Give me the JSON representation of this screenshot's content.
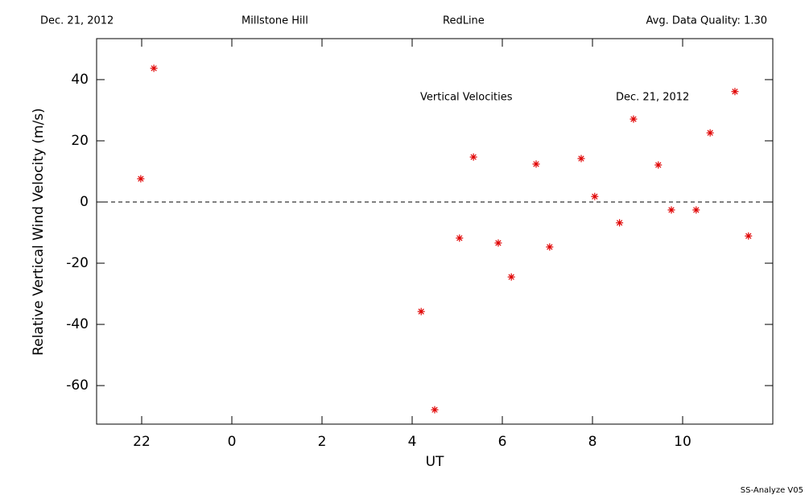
{
  "chart_data": {
    "type": "scatter",
    "header": [
      "Dec. 21, 2012",
      "Millstone Hill",
      "RedLine",
      "Avg. Data Quality: 1.30"
    ],
    "annotations": [
      "Vertical Velocities",
      "Dec. 21, 2012"
    ],
    "footer": "SS-Analyze V05",
    "x_label": "UT",
    "y_label": "Relative Vertical Wind Velocity (m/s)",
    "color": "#e00000",
    "x": [
      -2.02,
      -1.73,
      4.2,
      4.5,
      5.05,
      5.36,
      5.91,
      6.2,
      6.75,
      7.05,
      7.75,
      8.05,
      8.6,
      8.91,
      9.46,
      9.75,
      10.3,
      10.61,
      11.16,
      11.46
    ],
    "values": [
      7.6,
      43.7,
      -35.8,
      -67.9,
      -11.8,
      14.7,
      -13.4,
      -24.5,
      12.4,
      -14.7,
      14.2,
      1.8,
      -6.8,
      27.1,
      12.1,
      -2.6,
      -2.6,
      22.6,
      36.1,
      -11.1
    ],
    "xlim": [
      -3,
      12
    ],
    "xticks": [
      {
        "value": -2,
        "label": "22"
      },
      0,
      2,
      4,
      6,
      8,
      10
    ],
    "ylim": [
      -72.6,
      53.4
    ],
    "yticks": [
      -60,
      -40,
      -20,
      0,
      20,
      40
    ],
    "reference_line": 0
  }
}
